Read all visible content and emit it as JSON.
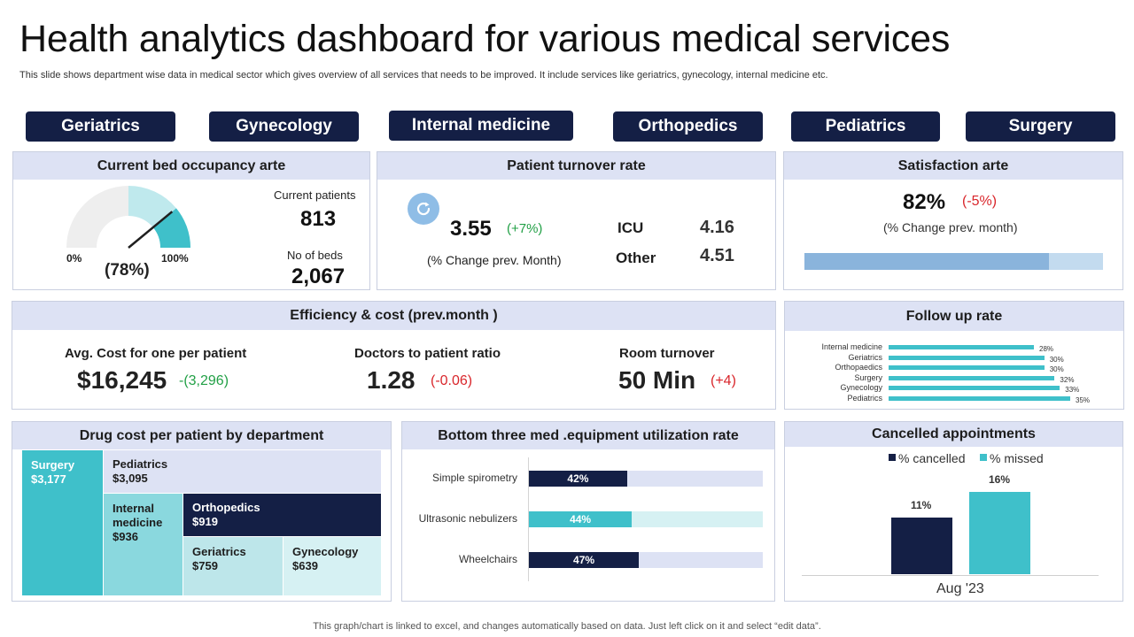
{
  "header": {
    "title": "Health analytics dashboard for various medical services",
    "subtitle": "This slide shows department wise data in medical sector which gives overview of all services that needs to be improved. It include services like geriatrics, gynecology, internal medicine etc."
  },
  "tabs": [
    "Geriatrics",
    "Gynecology",
    "Internal medicine",
    "Orthopedics",
    "Pediatrics",
    "Surgery"
  ],
  "bed_occupancy": {
    "heading": "Current bed occupancy arte",
    "gauge_value": 78,
    "gauge_percent_label": "(78%)",
    "min_label": "0%",
    "max_label": "100%",
    "current_patients_label": "Current  patients",
    "current_patients_value": "813",
    "beds_label": "No of beds",
    "beds_value": "2,067"
  },
  "turnover": {
    "heading": "Patient turnover rate",
    "icon": "refresh-icon",
    "value": "3.55",
    "change": "(+7%)",
    "change_label": "(% Change prev. Month)",
    "icu_label": "ICU",
    "icu_value": "4.16",
    "other_label": "Other",
    "other_value": "4.51"
  },
  "satisfaction": {
    "heading": "Satisfaction  arte",
    "value": "82%",
    "change": "(-5%)",
    "change_label": "(% Change prev. month)",
    "level": 0.82
  },
  "efficiency": {
    "heading": "Efficiency  & cost  (prev.month )",
    "avg_cost_label": "Avg.  Cost for one per patient",
    "avg_cost_value": "$16,245",
    "avg_cost_change": "-(3,296)",
    "ratio_label": "Doctors to patient ratio",
    "ratio_value": "1.28",
    "ratio_change": "(-0.06)",
    "room_label": "Room turnover",
    "room_value": "50 Min",
    "room_change": "(+4)"
  },
  "follow_up": {
    "heading": "Follow up rate",
    "items": [
      {
        "label": "Internal medicine",
        "value": 28,
        "text": "28%"
      },
      {
        "label": "Geriatrics",
        "value": 30,
        "text": "30%"
      },
      {
        "label": "Orthopaedics",
        "value": 30,
        "text": "30%"
      },
      {
        "label": "Surgery",
        "value": 32,
        "text": "32%"
      },
      {
        "label": "Gynecology",
        "value": 33,
        "text": "33%"
      },
      {
        "label": "Pediatrics",
        "value": 35,
        "text": "35%"
      }
    ]
  },
  "drug_cost": {
    "heading": "Drug cost  per patient by department",
    "cells": [
      {
        "name": "Surgery",
        "value": "$3,177"
      },
      {
        "name": "Pediatrics",
        "value": "$3,095"
      },
      {
        "name": "Internal medicine",
        "value": "$936"
      },
      {
        "name": "Orthopedics",
        "value": "$919"
      },
      {
        "name": "Geriatrics",
        "value": "$759"
      },
      {
        "name": "Gynecology",
        "value": "$639"
      }
    ]
  },
  "equipment": {
    "heading": "Bottom three med .equipment utilization rate",
    "items": [
      {
        "label": "Simple spirometry",
        "value": 42,
        "text": "42%"
      },
      {
        "label": "Ultrasonic nebulizers",
        "value": 44,
        "text": "44%"
      },
      {
        "label": "Wheelchairs",
        "value": 47,
        "text": "47%"
      }
    ]
  },
  "cancelled": {
    "heading": "Cancelled appointments",
    "legend_cancelled": "% cancelled",
    "legend_missed": "% missed",
    "cancelled_value": 11,
    "cancelled_text": "11%",
    "missed_value": 16,
    "missed_text": "16%",
    "period": "Aug '23"
  },
  "colors": {
    "navy": "#141f45",
    "teal": "#3fc0ca",
    "light_teal": "#8ad8de",
    "pale_teal": "#d6f1f3",
    "lavender": "#dde2f4",
    "satisfaction_fill": "#8ab4dc",
    "satisfaction_track": "#c3dbef"
  },
  "footer": "This graph/chart is linked to excel,  and changes automatically based on data. Just left click on it and select “edit data”."
}
